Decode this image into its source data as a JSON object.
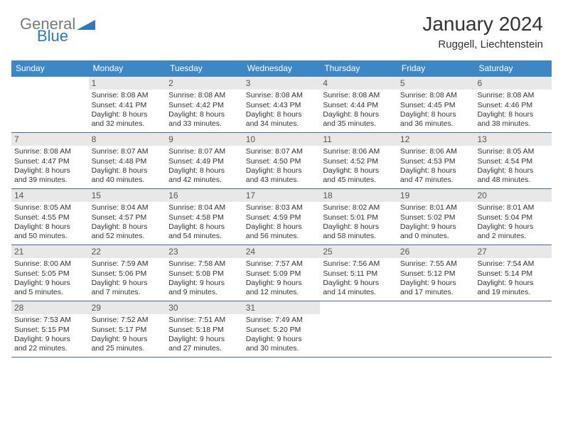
{
  "header": {
    "logo_general": "General",
    "logo_blue": "Blue",
    "title": "January 2024",
    "subtitle": "Ruggell, Liechtenstein"
  },
  "colors": {
    "header_bar": "#3d87c7",
    "week_border": "#3d6ea0",
    "daynum_bg": "#e8e8e8",
    "logo_gray": "#7a7a7a",
    "logo_blue": "#2b7bbd",
    "text": "#333333"
  },
  "days_of_week": [
    "Sunday",
    "Monday",
    "Tuesday",
    "Wednesday",
    "Thursday",
    "Friday",
    "Saturday"
  ],
  "weeks": [
    [
      {
        "num": "",
        "lines": [
          "",
          "",
          "",
          ""
        ],
        "empty": true
      },
      {
        "num": "1",
        "lines": [
          "Sunrise: 8:08 AM",
          "Sunset: 4:41 PM",
          "Daylight: 8 hours",
          "and 32 minutes."
        ]
      },
      {
        "num": "2",
        "lines": [
          "Sunrise: 8:08 AM",
          "Sunset: 4:42 PM",
          "Daylight: 8 hours",
          "and 33 minutes."
        ]
      },
      {
        "num": "3",
        "lines": [
          "Sunrise: 8:08 AM",
          "Sunset: 4:43 PM",
          "Daylight: 8 hours",
          "and 34 minutes."
        ]
      },
      {
        "num": "4",
        "lines": [
          "Sunrise: 8:08 AM",
          "Sunset: 4:44 PM",
          "Daylight: 8 hours",
          "and 35 minutes."
        ]
      },
      {
        "num": "5",
        "lines": [
          "Sunrise: 8:08 AM",
          "Sunset: 4:45 PM",
          "Daylight: 8 hours",
          "and 36 minutes."
        ]
      },
      {
        "num": "6",
        "lines": [
          "Sunrise: 8:08 AM",
          "Sunset: 4:46 PM",
          "Daylight: 8 hours",
          "and 38 minutes."
        ]
      }
    ],
    [
      {
        "num": "7",
        "lines": [
          "Sunrise: 8:08 AM",
          "Sunset: 4:47 PM",
          "Daylight: 8 hours",
          "and 39 minutes."
        ]
      },
      {
        "num": "8",
        "lines": [
          "Sunrise: 8:07 AM",
          "Sunset: 4:48 PM",
          "Daylight: 8 hours",
          "and 40 minutes."
        ]
      },
      {
        "num": "9",
        "lines": [
          "Sunrise: 8:07 AM",
          "Sunset: 4:49 PM",
          "Daylight: 8 hours",
          "and 42 minutes."
        ]
      },
      {
        "num": "10",
        "lines": [
          "Sunrise: 8:07 AM",
          "Sunset: 4:50 PM",
          "Daylight: 8 hours",
          "and 43 minutes."
        ]
      },
      {
        "num": "11",
        "lines": [
          "Sunrise: 8:06 AM",
          "Sunset: 4:52 PM",
          "Daylight: 8 hours",
          "and 45 minutes."
        ]
      },
      {
        "num": "12",
        "lines": [
          "Sunrise: 8:06 AM",
          "Sunset: 4:53 PM",
          "Daylight: 8 hours",
          "and 47 minutes."
        ]
      },
      {
        "num": "13",
        "lines": [
          "Sunrise: 8:05 AM",
          "Sunset: 4:54 PM",
          "Daylight: 8 hours",
          "and 48 minutes."
        ]
      }
    ],
    [
      {
        "num": "14",
        "lines": [
          "Sunrise: 8:05 AM",
          "Sunset: 4:55 PM",
          "Daylight: 8 hours",
          "and 50 minutes."
        ]
      },
      {
        "num": "15",
        "lines": [
          "Sunrise: 8:04 AM",
          "Sunset: 4:57 PM",
          "Daylight: 8 hours",
          "and 52 minutes."
        ]
      },
      {
        "num": "16",
        "lines": [
          "Sunrise: 8:04 AM",
          "Sunset: 4:58 PM",
          "Daylight: 8 hours",
          "and 54 minutes."
        ]
      },
      {
        "num": "17",
        "lines": [
          "Sunrise: 8:03 AM",
          "Sunset: 4:59 PM",
          "Daylight: 8 hours",
          "and 56 minutes."
        ]
      },
      {
        "num": "18",
        "lines": [
          "Sunrise: 8:02 AM",
          "Sunset: 5:01 PM",
          "Daylight: 8 hours",
          "and 58 minutes."
        ]
      },
      {
        "num": "19",
        "lines": [
          "Sunrise: 8:01 AM",
          "Sunset: 5:02 PM",
          "Daylight: 9 hours",
          "and 0 minutes."
        ]
      },
      {
        "num": "20",
        "lines": [
          "Sunrise: 8:01 AM",
          "Sunset: 5:04 PM",
          "Daylight: 9 hours",
          "and 2 minutes."
        ]
      }
    ],
    [
      {
        "num": "21",
        "lines": [
          "Sunrise: 8:00 AM",
          "Sunset: 5:05 PM",
          "Daylight: 9 hours",
          "and 5 minutes."
        ]
      },
      {
        "num": "22",
        "lines": [
          "Sunrise: 7:59 AM",
          "Sunset: 5:06 PM",
          "Daylight: 9 hours",
          "and 7 minutes."
        ]
      },
      {
        "num": "23",
        "lines": [
          "Sunrise: 7:58 AM",
          "Sunset: 5:08 PM",
          "Daylight: 9 hours",
          "and 9 minutes."
        ]
      },
      {
        "num": "24",
        "lines": [
          "Sunrise: 7:57 AM",
          "Sunset: 5:09 PM",
          "Daylight: 9 hours",
          "and 12 minutes."
        ]
      },
      {
        "num": "25",
        "lines": [
          "Sunrise: 7:56 AM",
          "Sunset: 5:11 PM",
          "Daylight: 9 hours",
          "and 14 minutes."
        ]
      },
      {
        "num": "26",
        "lines": [
          "Sunrise: 7:55 AM",
          "Sunset: 5:12 PM",
          "Daylight: 9 hours",
          "and 17 minutes."
        ]
      },
      {
        "num": "27",
        "lines": [
          "Sunrise: 7:54 AM",
          "Sunset: 5:14 PM",
          "Daylight: 9 hours",
          "and 19 minutes."
        ]
      }
    ],
    [
      {
        "num": "28",
        "lines": [
          "Sunrise: 7:53 AM",
          "Sunset: 5:15 PM",
          "Daylight: 9 hours",
          "and 22 minutes."
        ]
      },
      {
        "num": "29",
        "lines": [
          "Sunrise: 7:52 AM",
          "Sunset: 5:17 PM",
          "Daylight: 9 hours",
          "and 25 minutes."
        ]
      },
      {
        "num": "30",
        "lines": [
          "Sunrise: 7:51 AM",
          "Sunset: 5:18 PM",
          "Daylight: 9 hours",
          "and 27 minutes."
        ]
      },
      {
        "num": "31",
        "lines": [
          "Sunrise: 7:49 AM",
          "Sunset: 5:20 PM",
          "Daylight: 9 hours",
          "and 30 minutes."
        ]
      },
      {
        "num": "",
        "lines": [
          "",
          "",
          "",
          ""
        ],
        "empty": true
      },
      {
        "num": "",
        "lines": [
          "",
          "",
          "",
          ""
        ],
        "empty": true
      },
      {
        "num": "",
        "lines": [
          "",
          "",
          "",
          ""
        ],
        "empty": true
      }
    ]
  ]
}
